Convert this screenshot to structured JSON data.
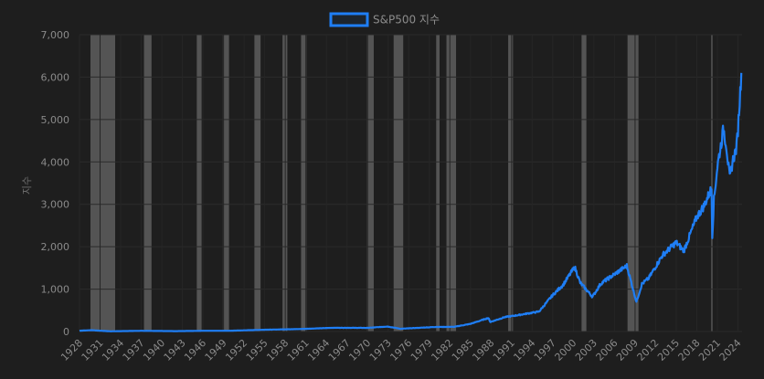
{
  "chart_data": {
    "type": "line",
    "title": "",
    "xlabel": "",
    "ylabel": "지수",
    "ylim": [
      0,
      7000
    ],
    "xlim": [
      1928,
      2024.6
    ],
    "grid": true,
    "legend_position": "top-center",
    "y_ticks": [
      0,
      1000,
      2000,
      3000,
      4000,
      5000,
      6000,
      7000
    ],
    "y_tick_labels": [
      "0",
      "1,000",
      "2,000",
      "3,000",
      "4,000",
      "5,000",
      "6,000",
      "7,000"
    ],
    "x_ticks": [
      1928,
      1931,
      1934,
      1937,
      1940,
      1943,
      1946,
      1949,
      1952,
      1955,
      1958,
      1961,
      1964,
      1967,
      1970,
      1973,
      1976,
      1979,
      1982,
      1985,
      1988,
      1991,
      1994,
      1997,
      2000,
      2003,
      2006,
      2009,
      2012,
      2015,
      2018,
      2021,
      2024
    ],
    "x_tick_labels": [
      "1928",
      "1931",
      "1934",
      "1937",
      "1940",
      "1943",
      "1946",
      "1949",
      "1952",
      "1955",
      "1958",
      "1961",
      "1964",
      "1967",
      "1970",
      "1973",
      "1976",
      "1979",
      "1982",
      "1985",
      "1988",
      "1991",
      "1994",
      "1997",
      "2000",
      "2003",
      "2006",
      "2009",
      "2012",
      "2015",
      "2018",
      "2021",
      "2024"
    ],
    "recession_bands": [
      [
        1929.6,
        1933.2
      ],
      [
        1937.4,
        1938.5
      ],
      [
        1945.1,
        1945.8
      ],
      [
        1948.9,
        1949.8
      ],
      [
        1953.5,
        1954.4
      ],
      [
        1957.6,
        1958.3
      ],
      [
        1960.3,
        1961.1
      ],
      [
        1969.9,
        1970.9
      ],
      [
        1973.8,
        1975.2
      ],
      [
        1980.0,
        1980.5
      ],
      [
        1981.5,
        1982.9
      ],
      [
        1990.5,
        1991.2
      ],
      [
        2001.2,
        2001.9
      ],
      [
        2007.9,
        2009.5
      ],
      [
        2020.1,
        2020.3
      ]
    ],
    "series": [
      {
        "name": "S&P500 지수",
        "color": "#1f7ef5",
        "x": [
          1928,
          1929.7,
          1932.5,
          1937,
          1942,
          1946,
          1950,
          1955,
          1960,
          1965,
          1970,
          1972.9,
          1974.8,
          1980,
          1982.6,
          1985,
          1987.6,
          1987.9,
          1990,
          1991.5,
          1995,
          1997,
          1998.5,
          2000.2,
          2001,
          2002.8,
          2004,
          2007.8,
          2009.2,
          2010,
          2011,
          2013,
          2015,
          2016.1,
          2018,
          2019,
          2020.15,
          2020.25,
          2020.5,
          2021,
          2021.9,
          2022.3,
          2022.8,
          2023.2,
          2023.8,
          2024,
          2024.5
        ],
        "y": [
          18,
          31,
          5,
          17,
          9,
          17,
          18,
          42,
          58,
          88,
          85,
          118,
          65,
          108,
          110,
          180,
          320,
          225,
          340,
          375,
          470,
          860,
          1100,
          1520,
          1150,
          820,
          1130,
          1550,
          700,
          1120,
          1260,
          1800,
          2100,
          1900,
          2700,
          2950,
          3380,
          2250,
          3100,
          3900,
          4780,
          4400,
          3600,
          4000,
          4350,
          4770,
          6100
        ]
      }
    ]
  }
}
